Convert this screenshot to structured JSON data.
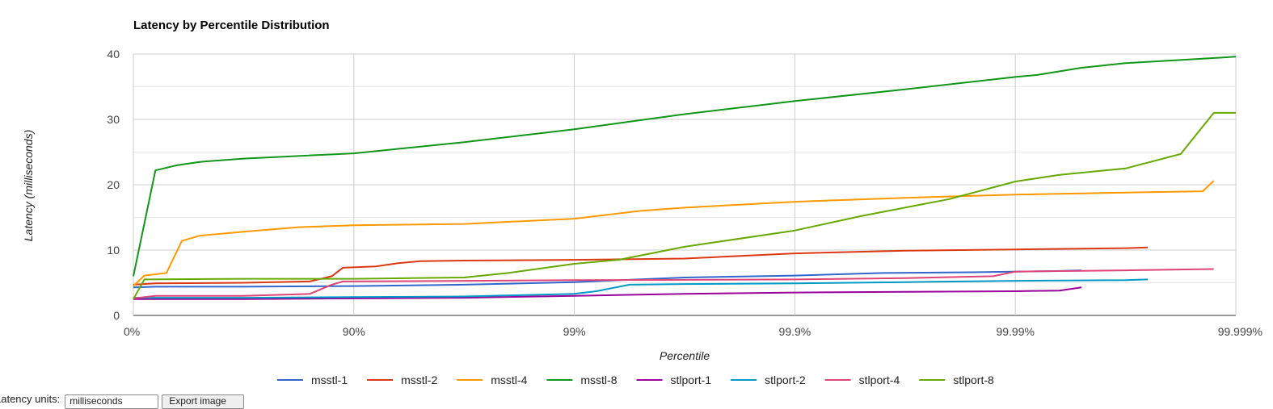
{
  "chart_data": {
    "type": "line",
    "title": "Latency by Percentile Distribution",
    "xlabel": "Percentile",
    "ylabel": "Latency (milliseconds)",
    "ylim": [
      0,
      40
    ],
    "yticks": [
      "0",
      "10",
      "20",
      "30",
      "40"
    ],
    "xticks": [
      "0%",
      "90%",
      "99%",
      "99.9%",
      "99.99%",
      "99.999%"
    ],
    "x_scale": "log10(1/(1-percentile)), 0 = 0%, 5 = 99.999%",
    "grid": true,
    "legend_position": "bottom",
    "series": [
      {
        "name": "msstl-1",
        "color": "#3366cc",
        "x": [
          0,
          0.1,
          0.5,
          1,
          1.5,
          2,
          2.5,
          3,
          3.4,
          3.8,
          4.2,
          4.3
        ],
        "y": [
          4.3,
          4.4,
          4.4,
          4.5,
          4.7,
          5.1,
          5.8,
          6.1,
          6.5,
          6.6,
          6.8,
          6.9
        ]
      },
      {
        "name": "msstl-2",
        "color": "#dc3912",
        "x": [
          0,
          0.1,
          0.5,
          0.8,
          0.9,
          0.95,
          1.1,
          1.2,
          1.3,
          1.5,
          2,
          2.5,
          3,
          3.5,
          4,
          4.5,
          4.6
        ],
        "y": [
          4.7,
          4.9,
          5.0,
          5.2,
          6.0,
          7.3,
          7.5,
          8.0,
          8.3,
          8.4,
          8.5,
          8.7,
          9.5,
          9.9,
          10.1,
          10.3,
          10.4
        ]
      },
      {
        "name": "msstl-4",
        "color": "#ff9900",
        "x": [
          0,
          0.05,
          0.15,
          0.22,
          0.3,
          0.5,
          0.75,
          1,
          1.5,
          2,
          2.3,
          2.5,
          3,
          3.5,
          4,
          4.5,
          4.85,
          4.9
        ],
        "y": [
          4.5,
          6.1,
          6.5,
          11.4,
          12.2,
          12.8,
          13.5,
          13.8,
          14.0,
          14.8,
          16.0,
          16.5,
          17.4,
          18.0,
          18.5,
          18.8,
          19.0,
          20.6
        ]
      },
      {
        "name": "msstl-8",
        "color": "#109618",
        "x": [
          0,
          0.1,
          0.2,
          0.3,
          0.5,
          1,
          1.5,
          2,
          2.5,
          3,
          3.5,
          4,
          4.1,
          4.3,
          4.5,
          4.7,
          4.95,
          5.0
        ],
        "y": [
          6.0,
          22.2,
          23.0,
          23.5,
          24.0,
          24.8,
          26.5,
          28.5,
          30.8,
          32.8,
          34.6,
          36.5,
          36.8,
          37.9,
          38.6,
          39.0,
          39.5,
          39.6
        ]
      },
      {
        "name": "stlport-1",
        "color": "#990099",
        "x": [
          0,
          0.5,
          1,
          1.5,
          2,
          2.5,
          3,
          3.5,
          4,
          4.2,
          4.3
        ],
        "y": [
          2.5,
          2.5,
          2.6,
          2.7,
          3.0,
          3.3,
          3.5,
          3.6,
          3.7,
          3.8,
          4.3
        ]
      },
      {
        "name": "stlport-2",
        "color": "#0099c6",
        "x": [
          0,
          0.5,
          1,
          1.5,
          2,
          2.1,
          2.25,
          2.5,
          3,
          3.5,
          4,
          4.5,
          4.6
        ],
        "y": [
          2.7,
          2.7,
          2.8,
          2.9,
          3.3,
          3.7,
          4.7,
          4.8,
          4.9,
          5.1,
          5.3,
          5.4,
          5.5
        ]
      },
      {
        "name": "stlport-4",
        "color": "#dd4477",
        "x": [
          0,
          0.1,
          0.5,
          0.8,
          0.9,
          0.95,
          1.5,
          2,
          3,
          3.5,
          3.9,
          4,
          4.5,
          4.9
        ],
        "y": [
          2.6,
          3.0,
          3.0,
          3.3,
          4.7,
          5.2,
          5.3,
          5.4,
          5.5,
          5.7,
          6.0,
          6.7,
          6.9,
          7.1
        ]
      },
      {
        "name": "stlport-8",
        "color": "#66aa00",
        "x": [
          0,
          0.05,
          0.5,
          1,
          1.5,
          1.7,
          2,
          2.2,
          2.5,
          3,
          3.3,
          3.7,
          4,
          4.2,
          4.5,
          4.75,
          4.9,
          5.0
        ],
        "y": [
          2.5,
          5.5,
          5.6,
          5.6,
          5.8,
          6.5,
          7.9,
          8.5,
          10.5,
          13.0,
          15.2,
          17.8,
          20.5,
          21.5,
          22.5,
          24.7,
          31.0,
          31.0
        ]
      }
    ]
  },
  "controls": {
    "label": "Latency units:",
    "units_value": "milliseconds",
    "export_label": "Export image"
  }
}
